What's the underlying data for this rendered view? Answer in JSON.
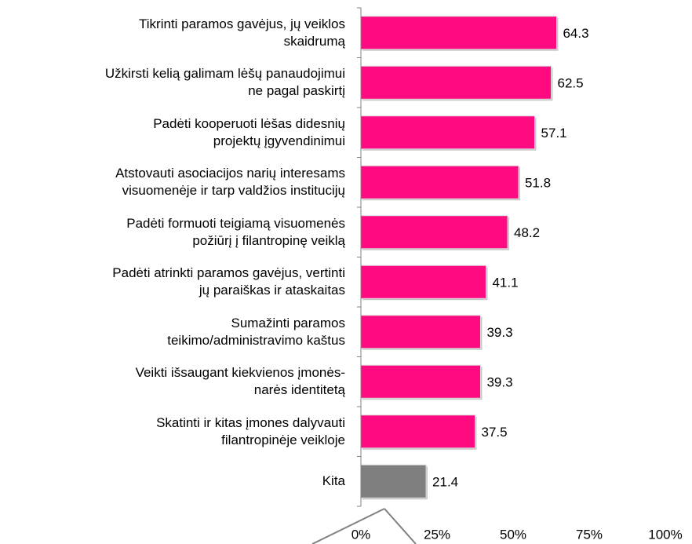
{
  "chart_data": {
    "type": "hbar",
    "categories": [
      "Tikrinti paramos gavėjus, jų veiklos\nskaidrumą",
      "Užkirsti kelią galimam lėšų panaudojimui\nne pagal paskirtį",
      "Padėti kooperuoti lėšas didesnių\nprojektų įgyvendinimui",
      "Atstovauti asociacijos narių interesams\nvisuomenėje ir tarp valdžios institucijų",
      "Padėti formuoti teigiamą visuomenės\npožiūrį į filantropinę veiklą",
      "Padėti atrinkti paramos gavėjus, vertinti\njų paraiškas ir ataskaitas",
      "Sumažinti paramos\nteikimo/administravimo kaštus",
      "Veikti išsaugant kiekvienos įmonės-\nnarės identitetą",
      "Skatinti ir kitas įmones dalyvauti\nfilantropinėje veikloje",
      "Kita"
    ],
    "values": [
      64.3,
      62.5,
      57.1,
      51.8,
      48.2,
      41.1,
      39.3,
      39.3,
      37.5,
      21.4
    ],
    "colors": [
      "#ff0a80",
      "#ff0a80",
      "#ff0a80",
      "#ff0a80",
      "#ff0a80",
      "#ff0a80",
      "#ff0a80",
      "#ff0a80",
      "#ff0a80",
      "#7f7f7f"
    ],
    "xlim": [
      0,
      100
    ],
    "xticks": [
      {
        "value": 0,
        "label": "0%"
      },
      {
        "value": 25,
        "label": "25%"
      },
      {
        "value": 50,
        "label": "50%"
      },
      {
        "value": 75,
        "label": "75%"
      },
      {
        "value": 100,
        "label": "100%"
      }
    ]
  }
}
